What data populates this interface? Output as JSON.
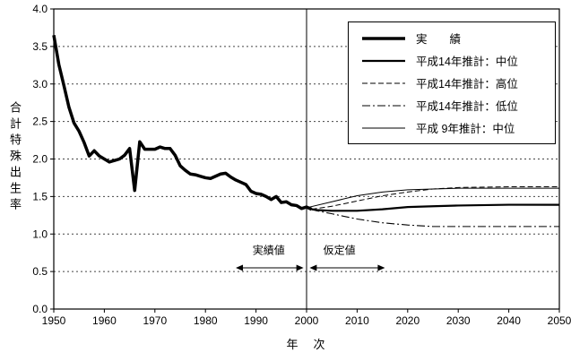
{
  "chart_data": {
    "type": "line",
    "title": "",
    "xlabel": "年　次",
    "ylabel": "合計特殊出生率",
    "xlim": [
      1950,
      2050
    ],
    "ylim": [
      0.0,
      4.0
    ],
    "x_ticks": [
      1950,
      1960,
      1970,
      1980,
      1990,
      2000,
      2010,
      2020,
      2030,
      2040,
      2050
    ],
    "y_ticks": [
      "0.0",
      "0.5",
      "1.0",
      "1.5",
      "2.0",
      "2.5",
      "3.0",
      "3.5",
      "4.0"
    ],
    "grid": "horizontal-dashed",
    "legend_position": "top-right",
    "annotations": {
      "divider_year": 2000,
      "left": {
        "label": "実績値",
        "from": 1986,
        "to": 1999.4,
        "y": 0.55,
        "label_x": 1992.5,
        "label_y": 0.78
      },
      "right": {
        "label": "仮定値",
        "from": 2000.6,
        "to": 2015.5,
        "y": 0.55,
        "label_x": 2006.5,
        "label_y": 0.78
      }
    },
    "series": [
      {
        "id": "actual",
        "name": "実　　績",
        "style": "thick-solid",
        "x": [
          1950,
          1951,
          1952,
          1953,
          1954,
          1955,
          1956,
          1957,
          1958,
          1959,
          1960,
          1961,
          1962,
          1963,
          1964,
          1965,
          1966,
          1967,
          1968,
          1969,
          1970,
          1971,
          1972,
          1973,
          1974,
          1975,
          1976,
          1977,
          1978,
          1979,
          1980,
          1981,
          1982,
          1983,
          1984,
          1985,
          1986,
          1987,
          1988,
          1989,
          1990,
          1991,
          1992,
          1993,
          1994,
          1995,
          1996,
          1997,
          1998,
          1999,
          2000,
          2001
        ],
        "y": [
          3.65,
          3.26,
          2.98,
          2.69,
          2.48,
          2.37,
          2.22,
          2.04,
          2.11,
          2.04,
          2.0,
          1.96,
          1.98,
          2.0,
          2.05,
          2.14,
          1.58,
          2.23,
          2.13,
          2.13,
          2.13,
          2.16,
          2.14,
          2.14,
          2.05,
          1.91,
          1.85,
          1.8,
          1.79,
          1.77,
          1.75,
          1.74,
          1.77,
          1.8,
          1.81,
          1.76,
          1.72,
          1.69,
          1.66,
          1.57,
          1.54,
          1.53,
          1.5,
          1.46,
          1.5,
          1.42,
          1.43,
          1.39,
          1.38,
          1.34,
          1.36,
          1.33
        ]
      },
      {
        "id": "h14-medium",
        "name": "平成14年推計：中位",
        "style": "solid",
        "x": [
          2001,
          2002,
          2005,
          2007,
          2010,
          2015,
          2020,
          2025,
          2030,
          2040,
          2050
        ],
        "y": [
          1.33,
          1.32,
          1.31,
          1.31,
          1.31,
          1.33,
          1.36,
          1.37,
          1.38,
          1.39,
          1.39
        ]
      },
      {
        "id": "h14-high",
        "name": "平成14年推計：高位",
        "style": "dashed",
        "x": [
          2001,
          2002,
          2005,
          2010,
          2015,
          2020,
          2025,
          2030,
          2040,
          2050
        ],
        "y": [
          1.33,
          1.34,
          1.37,
          1.44,
          1.51,
          1.56,
          1.6,
          1.62,
          1.63,
          1.63
        ]
      },
      {
        "id": "h14-low",
        "name": "平成14年推計：低位",
        "style": "dash-dot",
        "x": [
          2001,
          2002,
          2005,
          2010,
          2015,
          2020,
          2025,
          2030,
          2040,
          2050
        ],
        "y": [
          1.33,
          1.31,
          1.27,
          1.2,
          1.15,
          1.12,
          1.1,
          1.1,
          1.1,
          1.1
        ]
      },
      {
        "id": "h9-medium",
        "name": "平成 9年推計：中位",
        "style": "thin-solid",
        "x": [
          2000,
          2005,
          2010,
          2015,
          2020,
          2025,
          2030,
          2040,
          2050
        ],
        "y": [
          1.35,
          1.43,
          1.51,
          1.56,
          1.59,
          1.6,
          1.61,
          1.61,
          1.61
        ]
      }
    ]
  }
}
